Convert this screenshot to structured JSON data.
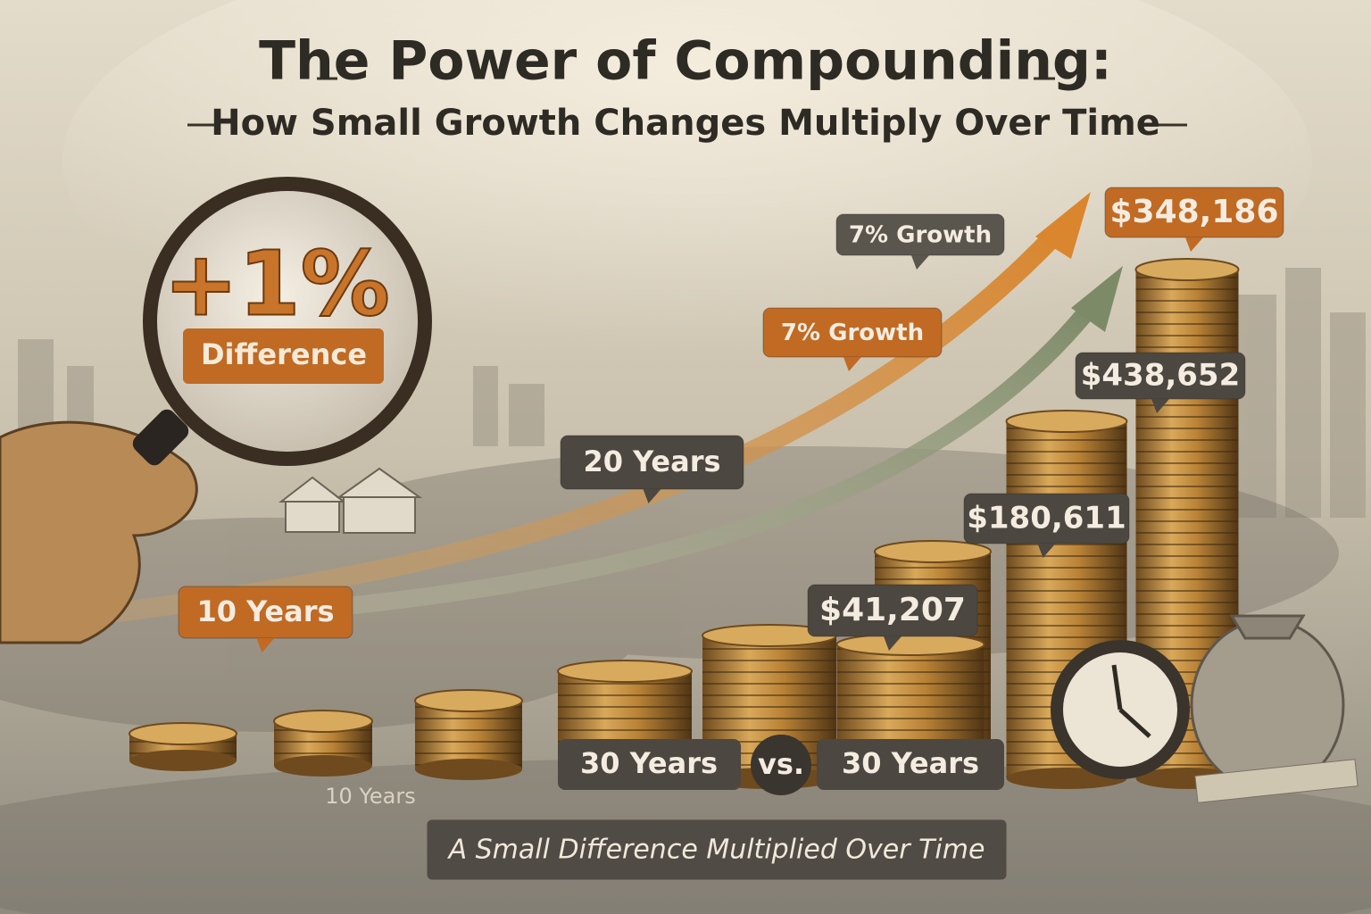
{
  "header": {
    "title": "The Power of Compounding:",
    "subtitle": "How Small Growth Changes Multiply Over Time"
  },
  "magnifier": {
    "value": "+1%",
    "label": "Difference"
  },
  "callouts": {
    "growth_top": "7% Growth",
    "total_top": "$348,186",
    "growth_mid": "7% Growth",
    "total_mid": "$438,652",
    "years_20": "20 Years",
    "total_20": "$180,611",
    "years_10": "10 Years",
    "total_10": "$41,207"
  },
  "comparison": {
    "left": "30 Years",
    "vs": "vs.",
    "right": "30 Years"
  },
  "ground_label": "10 Years",
  "footer": {
    "caption": "A Small Difference Multiplied Over Time"
  }
}
